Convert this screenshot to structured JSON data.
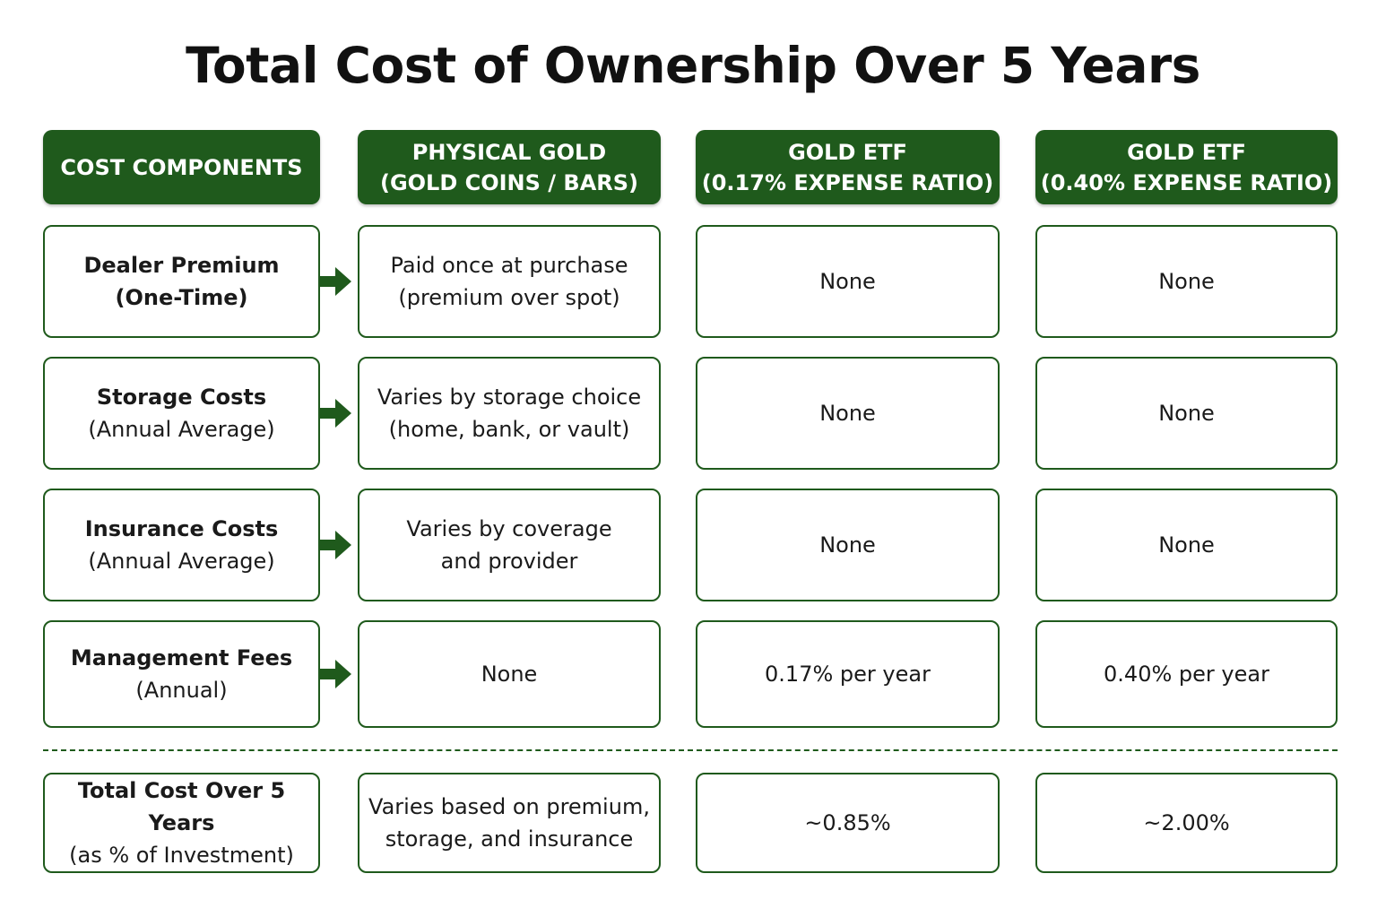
{
  "title": "Total Cost of Ownership Over 5 Years",
  "headers": [
    {
      "line1": "COST COMPONENTS",
      "line2": ""
    },
    {
      "line1": "PHYSICAL GOLD",
      "line2": "(GOLD COINS / BARS)"
    },
    {
      "line1": "GOLD ETF",
      "line2": "(0.17% EXPENSE RATIO)"
    },
    {
      "line1": "GOLD ETF",
      "line2": "(0.40% EXPENSE RATIO)"
    }
  ],
  "rows": [
    {
      "component": {
        "name": "Dealer Premium",
        "qualifier": "(One-Time)"
      },
      "physical": {
        "line1": "Paid once at purchase",
        "line2": "(premium over spot)"
      },
      "etf_017": "None",
      "etf_040": "None"
    },
    {
      "component": {
        "name": "Storage Costs",
        "qualifier": "(Annual Average)"
      },
      "physical": {
        "line1": "Varies by storage choice",
        "line2": "(home, bank, or vault)"
      },
      "etf_017": "None",
      "etf_040": "None"
    },
    {
      "component": {
        "name": "Insurance Costs",
        "qualifier": "(Annual Average)"
      },
      "physical": {
        "line1": "Varies by coverage",
        "line2": "and provider"
      },
      "etf_017": "None",
      "etf_040": "None"
    },
    {
      "component": {
        "name": "Management Fees",
        "qualifier": "(Annual)"
      },
      "physical": {
        "line1": "None",
        "line2": ""
      },
      "etf_017": "0.17% per year",
      "etf_040": "0.40% per year"
    }
  ],
  "total": {
    "component": {
      "name": "Total Cost Over 5 Years",
      "qualifier": "(as % of Investment)"
    },
    "physical": {
      "line1": "Varies based on premium,",
      "line2": "storage, and insurance"
    },
    "etf_017": "~0.85%",
    "etf_040": "~2.00%"
  },
  "colors": {
    "accent_green": "#1f5a1c",
    "header_text": "#ffffff",
    "body_text": "#1a1a1a"
  },
  "icons": {
    "row_connector": "right-arrow-icon"
  }
}
